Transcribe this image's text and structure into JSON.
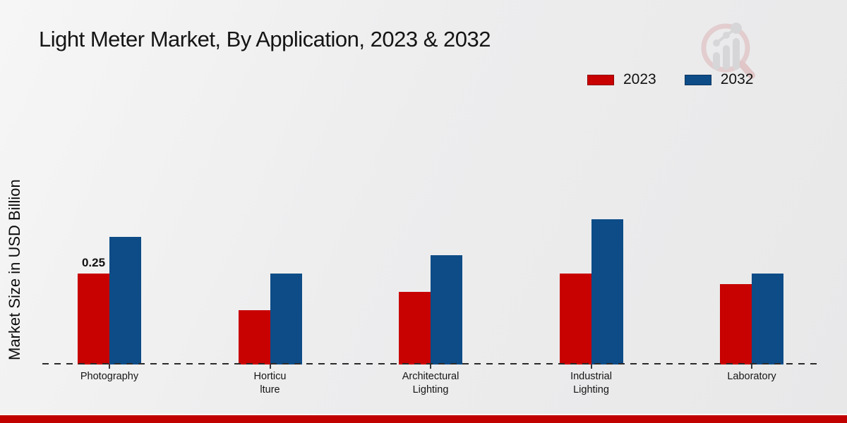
{
  "header": {
    "title": "Light Meter Market, By Application, 2023 & 2032"
  },
  "watermark": {
    "icon": "magnifier-bar-chart-logo",
    "circle_color": "#ddb5b6",
    "bars_color": "#c7c7c9"
  },
  "chart_data": {
    "type": "bar",
    "title": "Light Meter Market, By Application, 2023 & 2032",
    "categories": [
      "Photography",
      "Horticulture",
      "Architectural Lighting",
      "Industrial Lighting",
      "Laboratory"
    ],
    "category_label_lines": [
      [
        "Photography"
      ],
      [
        "Horticu",
        "lture"
      ],
      [
        "Architectural",
        "Lighting"
      ],
      [
        "Industrial",
        "Lighting"
      ],
      [
        "Laboratory"
      ]
    ],
    "series": [
      {
        "name": "2023",
        "color": "#c80101",
        "values": [
          0.25,
          0.15,
          0.2,
          0.25,
          0.22
        ]
      },
      {
        "name": "2032",
        "color": "#0d4c87",
        "values": [
          0.35,
          0.25,
          0.3,
          0.4,
          0.25
        ]
      }
    ],
    "data_labels": [
      {
        "category": "Photography",
        "series": "2023",
        "text": "0.25"
      }
    ],
    "xlabel": "",
    "ylabel": "Market Size in USD Billion",
    "ylim": [
      0,
      0.45
    ],
    "grid": false,
    "baseline_style": "dashed",
    "legend_position": "top-right"
  },
  "footer": {
    "stripe_color": "#c10000"
  }
}
